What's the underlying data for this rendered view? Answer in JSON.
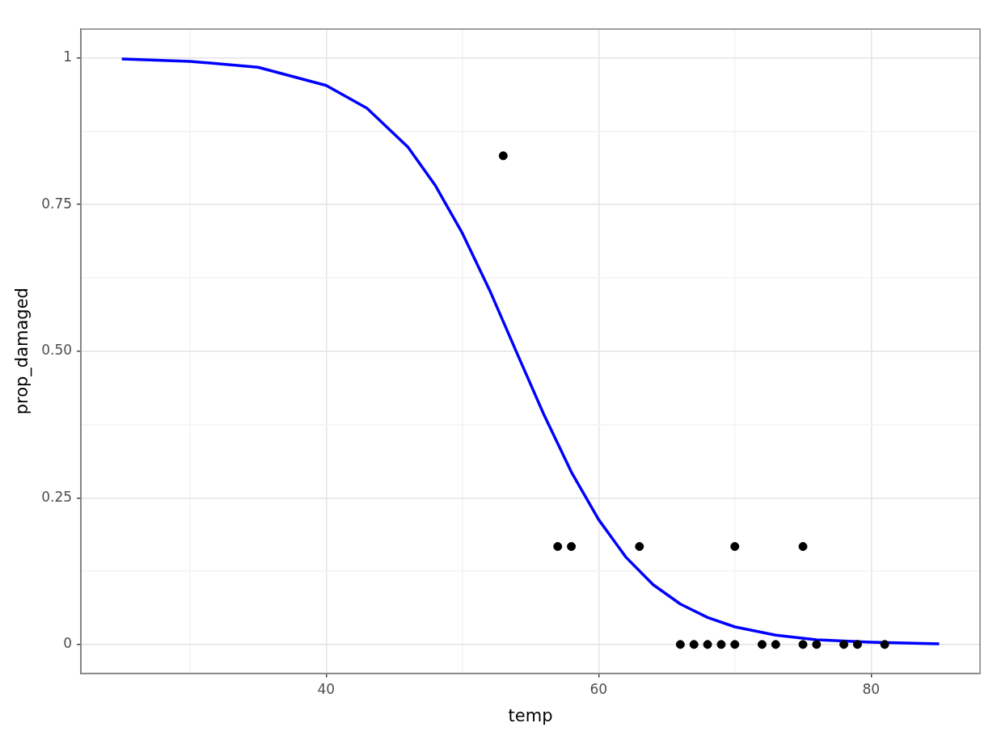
{
  "chart_data": {
    "type": "scatter",
    "xlabel": "temp",
    "ylabel": "prop_damaged",
    "xlim": [
      22,
      88
    ],
    "xticks": [
      {
        "value": 30,
        "label": null
      },
      40,
      {
        "value": 50,
        "label": null
      },
      60,
      {
        "value": 70,
        "label": null
      },
      80
    ],
    "ylim": [
      -0.049,
      1.049
    ],
    "yticks": [
      0,
      {
        "value": 0.125,
        "label": null
      },
      {
        "value": 0.25,
        "label": "0.25"
      },
      {
        "value": 0.375,
        "label": null
      },
      {
        "value": 0.5,
        "label": "0.50"
      },
      {
        "value": 0.625,
        "label": null
      },
      {
        "value": 0.75,
        "label": "0.75"
      },
      {
        "value": 0.875,
        "label": null
      },
      1
    ],
    "grid": true,
    "legend": false,
    "series": [
      {
        "type": "scatter",
        "color": "#000000",
        "marker": "circle",
        "x": [
          66,
          70,
          69,
          68,
          67,
          72,
          73,
          70,
          57,
          63,
          78,
          53,
          75,
          81,
          76,
          79,
          75,
          58
        ],
        "values": [
          0,
          0.167,
          0,
          0,
          0,
          0,
          0,
          0,
          0.167,
          0.167,
          0,
          0.833,
          0,
          0,
          0,
          0,
          0.167,
          0.167
        ]
      },
      {
        "type": "line",
        "color": "#0000ff",
        "marker": "none",
        "line_style": "solid",
        "x": [
          25,
          30,
          35,
          40,
          43,
          46,
          48,
          50,
          52,
          54,
          56,
          58,
          60,
          62,
          64,
          66,
          68,
          70,
          73,
          76,
          80,
          85
        ],
        "values": [
          0.998,
          0.994,
          0.984,
          0.953,
          0.914,
          0.848,
          0.783,
          0.701,
          0.604,
          0.497,
          0.391,
          0.294,
          0.213,
          0.149,
          0.102,
          0.069,
          0.046,
          0.03,
          0.016,
          0.008,
          0.004,
          0.001
        ]
      }
    ]
  }
}
